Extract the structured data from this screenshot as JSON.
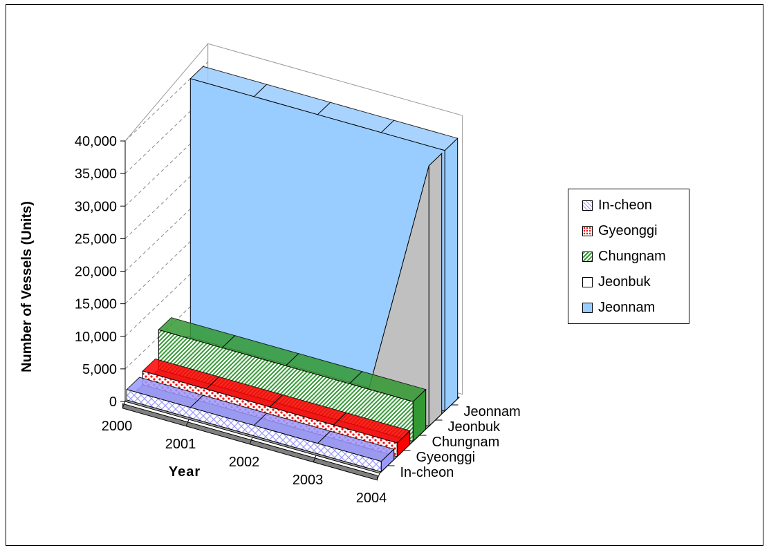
{
  "chart_data": {
    "type": "area",
    "subtype": "3d-area",
    "title": "",
    "xlabel": "Year",
    "ylabel": "Number of Vessels (Units)",
    "categories": [
      "2000",
      "2001",
      "2002",
      "2003",
      "2004"
    ],
    "ylim": [
      0,
      40000
    ],
    "yticks": [
      "0",
      "5,000",
      "10,000",
      "15,000",
      "20,000",
      "25,000",
      "30,000",
      "35,000",
      "40,000"
    ],
    "series": [
      {
        "name": "In-cheon",
        "values": [
          1600,
          1600,
          1600,
          1600,
          1600
        ],
        "color": "#9999ff",
        "pattern": "crosshatch"
      },
      {
        "name": "Gyeonggi",
        "values": [
          2100,
          2100,
          2100,
          2100,
          2100
        ],
        "color": "#ff0000",
        "pattern": "dots"
      },
      {
        "name": "Chungnam",
        "values": [
          6100,
          6100,
          6100,
          6100,
          6100
        ],
        "color": "#339933",
        "pattern": "diagonal"
      },
      {
        "name": "Jeonbuk",
        "values": [
          900,
          900,
          900,
          900,
          40000
        ],
        "color": "#c0c0c0",
        "pattern": "solid"
      },
      {
        "name": "Jeonnam",
        "values": [
          40000,
          40000,
          40000,
          40000,
          40000
        ],
        "color": "#99ccff",
        "pattern": "solid"
      }
    ],
    "legend": {
      "position": "right"
    },
    "grid": true
  }
}
